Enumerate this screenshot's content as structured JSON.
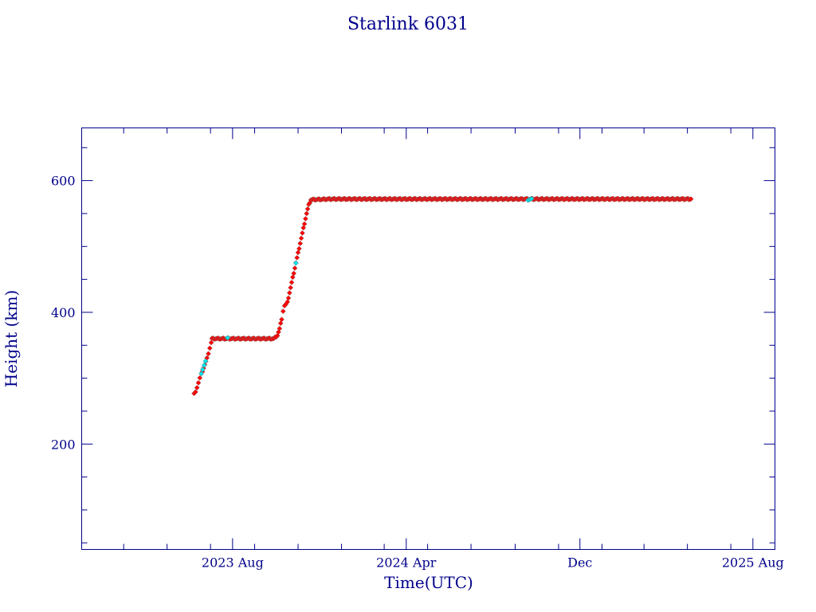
{
  "chart_data": {
    "type": "scatter",
    "title": "Starlink 6031",
    "xlabel": "Time(UTC)",
    "ylabel": "Height (km)",
    "x_tick_labels": [
      "2023 Aug",
      "2024 Apr",
      "Dec",
      "2025 Aug"
    ],
    "x_tick_dates": [
      "2023-08-01",
      "2024-04-01",
      "2024-12-01",
      "2025-08-01"
    ],
    "xlim": [
      "2023-01-01",
      "2025-09-01"
    ],
    "y_ticks": [
      200,
      400,
      600
    ],
    "ylim": [
      40,
      680
    ],
    "grid": false,
    "colors": {
      "frame": "#00008b",
      "primary_series": "#ff0000",
      "secondary_series": "#00e5ee",
      "marker_edge": "#6b6b6b"
    },
    "series": [
      {
        "color": "#ff0000",
        "points": [
          [
            "2023-06-08",
            276
          ],
          [
            "2023-06-10",
            280
          ],
          [
            "2023-06-12",
            286
          ],
          [
            "2023-06-14",
            293
          ],
          [
            "2023-06-16",
            300
          ],
          [
            "2023-06-18",
            306
          ],
          [
            "2023-06-26",
            330
          ],
          [
            "2023-06-28",
            338
          ],
          [
            "2023-06-30",
            346
          ],
          [
            "2023-07-02",
            354
          ],
          [
            "2023-07-03",
            360
          ],
          [
            "2023-07-15",
            360
          ],
          [
            "2023-08-01",
            360
          ],
          [
            "2023-08-20",
            360
          ],
          [
            "2023-09-10",
            360
          ],
          [
            "2023-09-28",
            360
          ],
          [
            "2023-10-03",
            365
          ],
          [
            "2023-10-06",
            375
          ],
          [
            "2023-10-09",
            390
          ],
          [
            "2023-10-11",
            402
          ],
          [
            "2023-10-13",
            410
          ],
          [
            "2023-10-15",
            412
          ],
          [
            "2023-10-17",
            415
          ],
          [
            "2023-10-20",
            430
          ],
          [
            "2023-10-23",
            445
          ],
          [
            "2023-10-26",
            460
          ],
          [
            "2023-10-29",
            475
          ],
          [
            "2023-11-01",
            490
          ],
          [
            "2023-11-04",
            505
          ],
          [
            "2023-11-07",
            520
          ],
          [
            "2023-11-10",
            535
          ],
          [
            "2023-11-13",
            550
          ],
          [
            "2023-11-16",
            563
          ],
          [
            "2023-11-19",
            571
          ],
          [
            "2023-12-15",
            572
          ],
          [
            "2024-01-20",
            572
          ],
          [
            "2024-03-01",
            572
          ],
          [
            "2024-04-15",
            572
          ],
          [
            "2024-06-01",
            572
          ],
          [
            "2024-07-15",
            572
          ],
          [
            "2024-08-20",
            572
          ],
          [
            "2024-09-25",
            572
          ],
          [
            "2024-11-01",
            572
          ],
          [
            "2024-12-15",
            572
          ],
          [
            "2025-02-01",
            572
          ],
          [
            "2025-03-15",
            572
          ],
          [
            "2025-04-15",
            572
          ],
          [
            "2025-05-06",
            572
          ]
        ]
      },
      {
        "color": "#00e5ee",
        "points": [
          [
            "2023-06-18",
            306
          ],
          [
            "2023-06-20",
            314
          ],
          [
            "2023-06-22",
            320
          ],
          [
            "2023-06-24",
            326
          ],
          [
            "2023-07-25",
            361
          ],
          [
            "2023-10-29",
            474
          ],
          [
            "2024-09-19",
            571
          ],
          [
            "2024-09-24",
            572
          ]
        ]
      }
    ]
  }
}
